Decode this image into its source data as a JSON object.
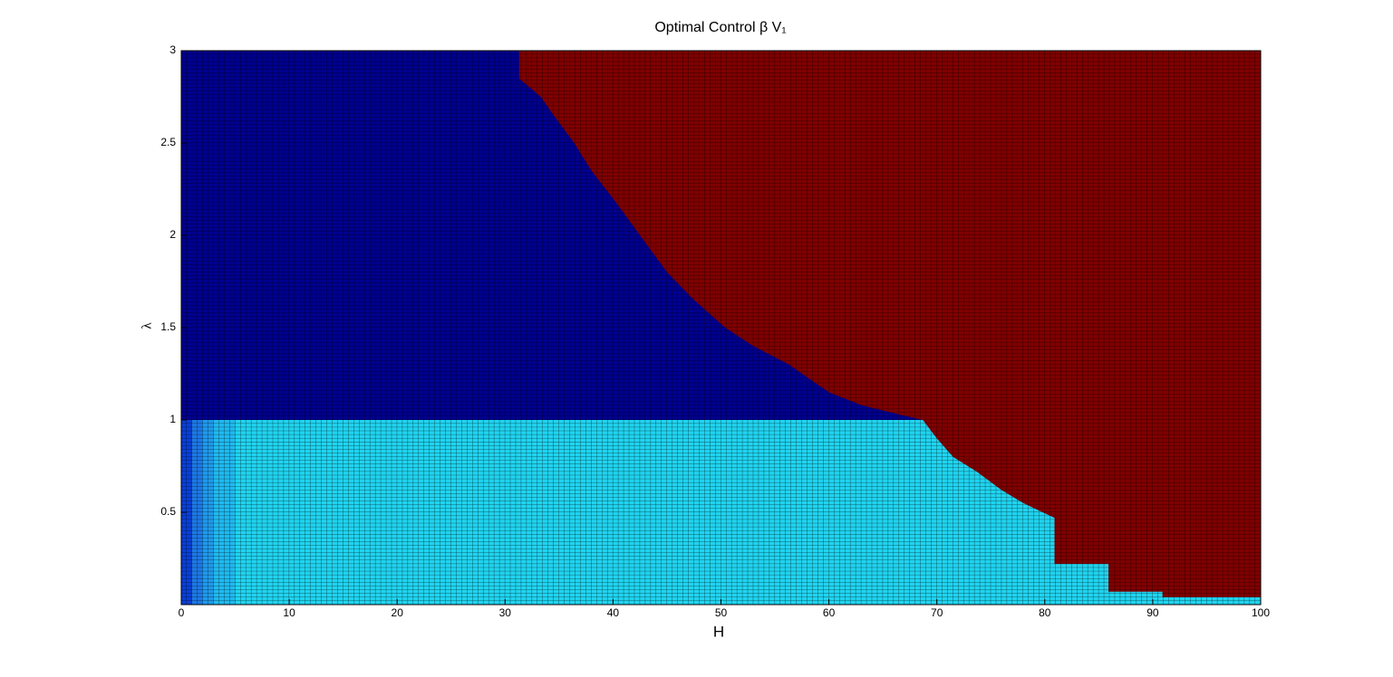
{
  "chart_data": {
    "type": "region",
    "title": "Optimal Control β V₁",
    "xlabel": "H",
    "ylabel": "λ",
    "xlim": [
      0,
      100
    ],
    "xticks": [
      0,
      10,
      20,
      30,
      40,
      50,
      60,
      70,
      80,
      90,
      100
    ],
    "ylim": [
      0,
      3
    ],
    "yticks": [
      0.5,
      1,
      1.5,
      2,
      2.5,
      3
    ],
    "split_lambda": 1,
    "color_upper": "#00008f",
    "color_lower": "#20d4f0",
    "color_boundary_region": "#800000",
    "strips": [
      {
        "x": [
          0,
          1
        ],
        "color": "#0a3fd6"
      },
      {
        "x": [
          1,
          2
        ],
        "color": "#1d78e6"
      },
      {
        "x": [
          2,
          3
        ],
        "color": "#1f9aec"
      },
      {
        "x": [
          3,
          5
        ],
        "color": "#20baf0"
      }
    ],
    "boundary_H": [
      31.3,
      31.3,
      33.3,
      34.5,
      36.4,
      38,
      40,
      42.5,
      45,
      47.5,
      50.4,
      53,
      56.3,
      60,
      63,
      66.5,
      68.7,
      70,
      71.5,
      73.7,
      76,
      78,
      79.8,
      80.9,
      80.9,
      85.9,
      85.9,
      90.9,
      90.9,
      100
    ],
    "boundary_lambda": [
      3,
      2.85,
      2.75,
      2.65,
      2.5,
      2.35,
      2.2,
      2,
      1.8,
      1.65,
      1.5,
      1.4,
      1.3,
      1.15,
      1.08,
      1.03,
      1,
      0.9,
      0.8,
      0.72,
      0.62,
      0.55,
      0.5,
      0.47,
      0.22,
      0.22,
      0.07,
      0.07,
      0.04,
      0.04
    ]
  }
}
